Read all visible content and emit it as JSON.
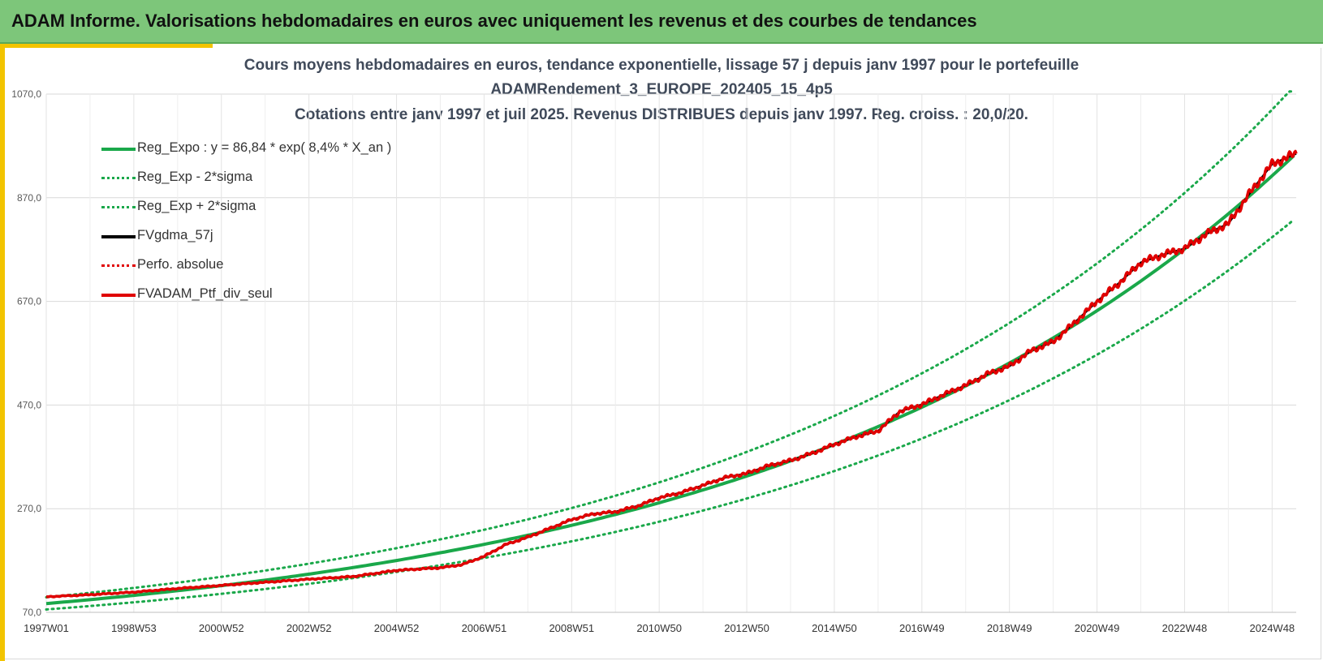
{
  "header": {
    "title": "ADAM Informe. Valorisations hebdomadaires en euros avec uniquement les revenus et des courbes de tendances"
  },
  "chart_data": {
    "type": "line",
    "title_lines": [
      "Cours moyens hebdomadaires  en euros, tendance exponentielle, lissage 57 j depuis janv 1997 pour le portefeuille",
      "ADAMRendement_3_EUROPE_202405_15_4p5",
      "Cotations entre janv 1997 et juil 2025. Revenus DISTRIBUES depuis janv 1997. Reg. croiss. : 20,0/20."
    ],
    "xlabel": "",
    "ylabel": "",
    "x_ticks": [
      "1997W01",
      "1998W53",
      "2000W52",
      "2002W52",
      "2004W52",
      "2006W51",
      "2008W51",
      "2010W50",
      "2012W50",
      "2014W50",
      "2016W49",
      "2018W49",
      "2020W49",
      "2022W48",
      "2024W48"
    ],
    "x_range_years": [
      1997.0,
      2025.55
    ],
    "y_ticks": [
      "70,0",
      "270,0",
      "470,0",
      "670,0",
      "870,0",
      "1070,0"
    ],
    "ylim": [
      70,
      1070
    ],
    "grid": true,
    "legend_placement": "top-left",
    "regression": {
      "a": 86.84,
      "rate_pct": 8.4,
      "sigma_factor_plus": 1.14,
      "sigma_factor_minus": 0.87
    },
    "series": [
      {
        "name": "Reg_Expo : y = 86,84 * exp( 8,4% *  X_an )",
        "style": "solid-thick",
        "color": "#1aa84a"
      },
      {
        "name": "Reg_Exp - 2*sigma",
        "style": "dotted",
        "color": "#1aa84a"
      },
      {
        "name": "Reg_Exp + 2*sigma",
        "style": "dotted",
        "color": "#1aa84a"
      },
      {
        "name": "FVgdma_57j",
        "style": "solid",
        "color": "#000000"
      },
      {
        "name": "Perfo. absolue",
        "style": "dotted",
        "color": "#e00000"
      },
      {
        "name": "FVADAM_Ptf_div_seul",
        "style": "solid-thick",
        "color": "#e00000",
        "x": [
          1997.0,
          1998.0,
          1999.0,
          2000.0,
          2001.0,
          2002.0,
          2003.0,
          2004.0,
          2005.0,
          2006.0,
          2006.5,
          2007.0,
          2007.5,
          2008.0,
          2008.5,
          2009.0,
          2009.5,
          2010.0,
          2010.5,
          2011.0,
          2011.5,
          2012.0,
          2012.5,
          2013.0,
          2013.5,
          2014.0,
          2014.5,
          2015.0,
          2015.5,
          2016.0,
          2016.5,
          2017.0,
          2017.5,
          2018.0,
          2018.5,
          2019.0,
          2019.5,
          2020.0,
          2020.5,
          2021.0,
          2021.5,
          2022.0,
          2022.5,
          2023.0,
          2023.5,
          2024.0,
          2024.5,
          2025.0,
          2025.55
        ],
        "values": [
          100,
          104,
          109,
          116,
          122,
          128,
          134,
          139,
          151,
          156,
          162,
          178,
          201,
          215,
          232,
          249,
          260,
          264,
          275,
          291,
          301,
          315,
          330,
          338,
          353,
          363,
          377,
          394,
          409,
          420,
          458,
          471,
          490,
          508,
          530,
          545,
          575,
          592,
          630,
          670,
          705,
          745,
          760,
          772,
          800,
          820,
          880,
          935,
          955
        ]
      }
    ]
  }
}
